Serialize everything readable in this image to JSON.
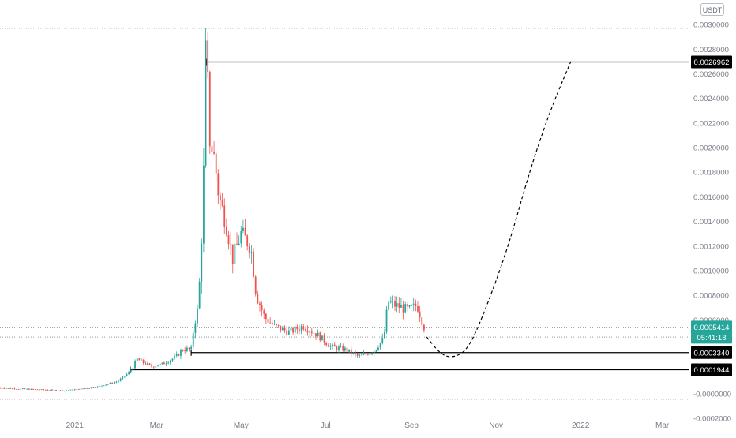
{
  "currency": "USDT",
  "colors": {
    "up": "#26a69a",
    "down": "#ef5350",
    "level_line": "#000000",
    "last_price_bg": "#26a69a",
    "level_tag_bg": "#000000",
    "grid_dotted": "#9598a1",
    "axis_text": "#787b86"
  },
  "chart_data": {
    "type": "candlestick",
    "title": "",
    "xlabel": "",
    "ylabel": "",
    "ylim": [
      -0.0002,
      0.0032
    ],
    "y_ticks": [
      "0.0030000",
      "0.0028000",
      "0.0026000",
      "0.0024000",
      "0.0022000",
      "0.0020000",
      "0.0018000",
      "0.0016000",
      "0.0014000",
      "0.0012000",
      "0.0010000",
      "0.0008000",
      "0.0006000",
      "-0.0000000",
      "-0.0002000"
    ],
    "x_ticks": [
      {
        "label": "2021",
        "date": "2021-01-01"
      },
      {
        "label": "Mar",
        "date": "2021-03-01"
      },
      {
        "label": "May",
        "date": "2021-05-01"
      },
      {
        "label": "Jul",
        "date": "2021-07-01"
      },
      {
        "label": "Sep",
        "date": "2021-09-01"
      },
      {
        "label": "Nov",
        "date": "2021-11-01"
      },
      {
        "label": "2022",
        "date": "2022-01-01"
      },
      {
        "label": "Mar",
        "date": "2022-03-01"
      }
    ],
    "x_range": [
      "2020-11-08",
      "2022-03-20"
    ],
    "price_path": [
      [
        "2020-11-08",
        4.5e-05
      ],
      [
        "2020-12-01",
        3.5e-05
      ],
      [
        "2020-12-25",
        2.5e-05
      ],
      [
        "2021-01-15",
        5e-05
      ],
      [
        "2021-02-01",
        0.0001
      ],
      [
        "2021-02-10",
        0.00018
      ],
      [
        "2021-02-15",
        0.00028
      ],
      [
        "2021-02-25",
        0.00022
      ],
      [
        "2021-03-05",
        0.00024
      ],
      [
        "2021-03-15",
        0.0003
      ],
      [
        "2021-03-20",
        0.00036
      ],
      [
        "2021-03-26",
        0.00036
      ],
      [
        "2021-03-28",
        0.00055
      ],
      [
        "2021-03-31",
        0.0007
      ],
      [
        "2021-04-02",
        0.0011
      ],
      [
        "2021-04-04",
        0.0018
      ],
      [
        "2021-04-05",
        0.0026
      ],
      [
        "2021-04-06",
        0.0029
      ],
      [
        "2021-04-08",
        0.0021
      ],
      [
        "2021-04-12",
        0.0019
      ],
      [
        "2021-04-15",
        0.0016
      ],
      [
        "2021-04-20",
        0.0014
      ],
      [
        "2021-04-25",
        0.0011
      ],
      [
        "2021-05-01",
        0.0013
      ],
      [
        "2021-05-08",
        0.0012
      ],
      [
        "2021-05-12",
        0.0008
      ],
      [
        "2021-05-18",
        0.00062
      ],
      [
        "2021-05-25",
        0.00055
      ],
      [
        "2021-06-05",
        0.0005
      ],
      [
        "2021-06-15",
        0.00055
      ],
      [
        "2021-06-25",
        0.00048
      ],
      [
        "2021-07-05",
        0.00038
      ],
      [
        "2021-07-15",
        0.00036
      ],
      [
        "2021-07-25",
        0.0003
      ],
      [
        "2021-08-05",
        0.00035
      ],
      [
        "2021-08-12",
        0.00045
      ],
      [
        "2021-08-15",
        0.00075
      ],
      [
        "2021-08-20",
        0.00072
      ],
      [
        "2021-08-30",
        0.00068
      ],
      [
        "2021-09-05",
        0.00072
      ],
      [
        "2021-09-10",
        0.00054
      ]
    ],
    "spike_candle": {
      "date": "2021-04-06",
      "high": 0.00297
    },
    "levels": [
      {
        "label": "0.0026962",
        "value": 0.0026962,
        "start": "2021-04-06"
      },
      {
        "label": "0.0003340",
        "value": 0.000334,
        "start": "2021-03-26"
      },
      {
        "label": "0.0001944",
        "value": 0.0001944,
        "start": "2021-02-10"
      }
    ],
    "last_price": {
      "label": "0.0005414",
      "value": 0.0005414,
      "countdown": "05:41:18"
    },
    "dotted_lines": [
      0.00297,
      0.00054,
      0.00046,
      -4.5e-05
    ],
    "projection_path": [
      [
        "2021-09-12",
        0.00046
      ],
      [
        "2021-09-22",
        0.00032
      ],
      [
        "2021-10-01",
        0.00029
      ],
      [
        "2021-10-12",
        0.00036
      ],
      [
        "2021-10-25",
        0.0007
      ],
      [
        "2021-11-10",
        0.0012
      ],
      [
        "2021-11-25",
        0.0018
      ],
      [
        "2021-12-10",
        0.0023
      ],
      [
        "2021-12-25",
        0.0027
      ]
    ]
  }
}
